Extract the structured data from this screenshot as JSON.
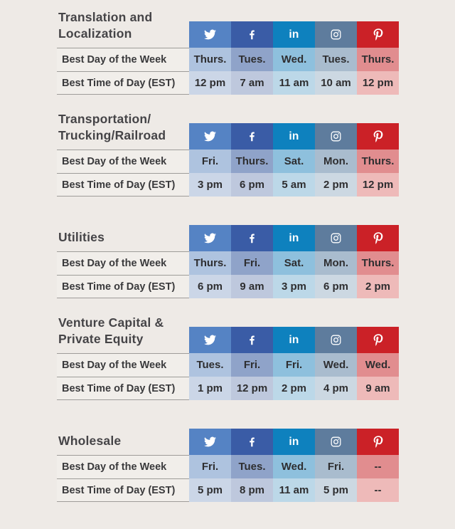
{
  "colors": {
    "page_background": "#EEEAE6",
    "title_text": "#454447",
    "label_text": "#3A3A3C",
    "cell_text": "#2E2E30",
    "divider": "#9E9C99",
    "label_row_background": "#F1EEEA"
  },
  "platforms": [
    {
      "id": "twitter",
      "label": "Twitter",
      "icon": "twitter-icon",
      "header_color": "#5583C4",
      "day_color": "#AEC3DF",
      "time_color": "#CBD6E7"
    },
    {
      "id": "facebook",
      "label": "Facebook",
      "icon": "facebook-icon",
      "header_color": "#3A5CA6",
      "day_color": "#8FA3C9",
      "time_color": "#BEC8DD"
    },
    {
      "id": "linkedin",
      "label": "LinkedIn",
      "icon": "linkedin-icon",
      "glyph": "in",
      "header_color": "#0E81BE",
      "day_color": "#8EC0DD",
      "time_color": "#BCD8E8"
    },
    {
      "id": "instagram",
      "label": "Instagram",
      "icon": "instagram-icon",
      "header_color": "#5E7C9D",
      "day_color": "#A9BCCE",
      "time_color": "#CCD8E2"
    },
    {
      "id": "pinterest",
      "label": "Pinterest",
      "icon": "pinterest-icon",
      "header_color": "#CB2127",
      "day_color": "#E18D8F",
      "time_color": "#EEBAB9"
    }
  ],
  "chart_data": [
    {
      "type": "table",
      "title": "Translation and Localization",
      "title_lines": [
        "Translation and",
        "Localization"
      ],
      "columns": [
        "Twitter",
        "Facebook",
        "LinkedIn",
        "Instagram",
        "Pinterest"
      ],
      "row_labels": [
        "Best Day of the Week",
        "Best Time of Day (EST)"
      ],
      "best_day": [
        "Thurs.",
        "Tues.",
        "Wed.",
        "Tues.",
        "Thurs."
      ],
      "best_time": [
        "12 pm",
        "7 am",
        "11 am",
        "10 am",
        "12 pm"
      ]
    },
    {
      "type": "table",
      "title": "Transportation/Trucking/Railroad",
      "title_lines": [
        "Transportation/",
        "Trucking/Railroad"
      ],
      "columns": [
        "Twitter",
        "Facebook",
        "LinkedIn",
        "Instagram",
        "Pinterest"
      ],
      "row_labels": [
        "Best Day of the Week",
        "Best Time of Day (EST)"
      ],
      "best_day": [
        "Fri.",
        "Thurs.",
        "Sat.",
        "Mon.",
        "Thurs."
      ],
      "best_time": [
        "3 pm",
        "6 pm",
        "5 am",
        "2 pm",
        "12 pm"
      ]
    },
    {
      "type": "table",
      "title": "Utilities",
      "title_lines": [
        "Utilities"
      ],
      "columns": [
        "Twitter",
        "Facebook",
        "LinkedIn",
        "Instagram",
        "Pinterest"
      ],
      "row_labels": [
        "Best Day of the Week",
        "Best Time of Day (EST)"
      ],
      "best_day": [
        "Thurs.",
        "Fri.",
        "Sat.",
        "Mon.",
        "Thurs."
      ],
      "best_time": [
        "6 pm",
        "9 am",
        "3 pm",
        "6 pm",
        "2 pm"
      ]
    },
    {
      "type": "table",
      "title": "Venture Capital & Private Equity",
      "title_lines": [
        "Venture Capital &",
        "Private Equity"
      ],
      "columns": [
        "Twitter",
        "Facebook",
        "LinkedIn",
        "Instagram",
        "Pinterest"
      ],
      "row_labels": [
        "Best Day of the Week",
        "Best Time of Day (EST)"
      ],
      "best_day": [
        "Tues.",
        "Fri.",
        "Fri.",
        "Wed.",
        "Wed."
      ],
      "best_time": [
        "1 pm",
        "12 pm",
        "2 pm",
        "4 pm",
        "9 am"
      ]
    },
    {
      "type": "table",
      "title": "Wholesale",
      "title_lines": [
        "Wholesale"
      ],
      "columns": [
        "Twitter",
        "Facebook",
        "LinkedIn",
        "Instagram",
        "Pinterest"
      ],
      "row_labels": [
        "Best Day of the Week",
        "Best Time of Day (EST)"
      ],
      "best_day": [
        "Fri.",
        "Tues.",
        "Wed.",
        "Fri.",
        "--"
      ],
      "best_time": [
        "5 pm",
        "8 pm",
        "11 am",
        "5 pm",
        "--"
      ]
    }
  ]
}
